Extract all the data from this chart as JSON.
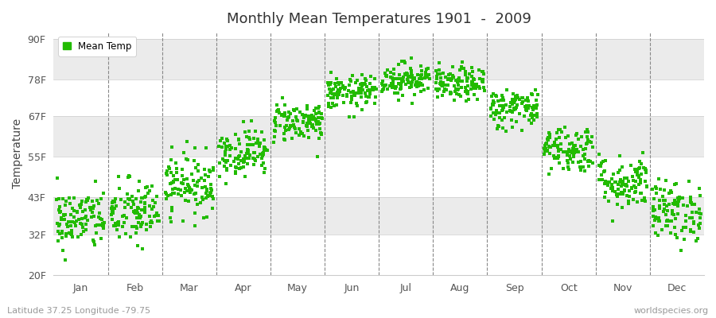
{
  "title": "Monthly Mean Temperatures 1901  -  2009",
  "ylabel": "Temperature",
  "subtitle_left": "Latitude 37.25 Longitude -79.75",
  "subtitle_right": "worldspecies.org",
  "legend_label": "Mean Temp",
  "dot_color": "#22BB00",
  "background_color": "#FFFFFF",
  "band_light": "#FFFFFF",
  "band_dark": "#EBEBEB",
  "ylim": [
    20,
    92
  ],
  "ytick_values": [
    20,
    32,
    43,
    55,
    67,
    78,
    90
  ],
  "ytick_labels": [
    "20F",
    "32F",
    "43F",
    "55F",
    "67F",
    "78F",
    "90F"
  ],
  "months": [
    "Jan",
    "Feb",
    "Mar",
    "Apr",
    "May",
    "Jun",
    "Jul",
    "Aug",
    "Sep",
    "Oct",
    "Nov",
    "Dec"
  ],
  "mean_temps_F": [
    36.5,
    38.5,
    47.0,
    56.5,
    65.5,
    74.0,
    78.0,
    76.5,
    69.5,
    57.5,
    47.5,
    39.0
  ],
  "std_temps_F": [
    4.5,
    5.0,
    4.5,
    3.5,
    3.0,
    2.5,
    2.5,
    2.5,
    3.0,
    3.5,
    4.0,
    4.5
  ],
  "n_years": 109,
  "random_seed": 42
}
